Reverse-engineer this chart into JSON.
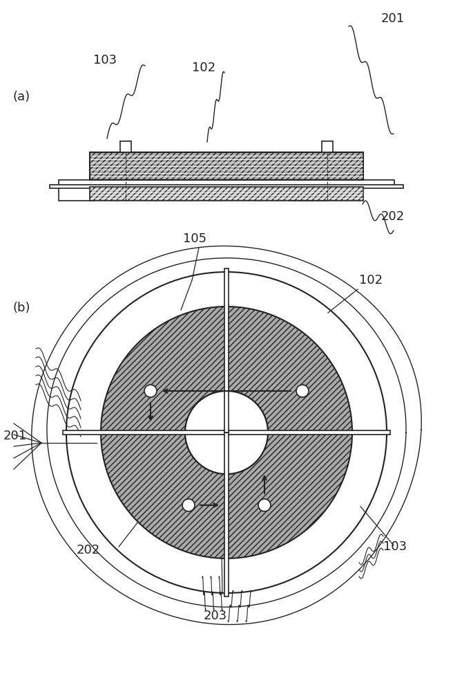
{
  "bg_color": "#ffffff",
  "fig_width": 6.56,
  "fig_height": 10.0,
  "label_a": "(a)",
  "label_b": "(b)",
  "labels": {
    "201_top": "201",
    "103_top": "103",
    "102_top": "102",
    "202_top": "202",
    "105": "105",
    "102_right": "102",
    "201_left": "201",
    "202_bottom_left": "202",
    "103_bottom_right": "103",
    "203": "203"
  },
  "line_color": "#222222",
  "fill_light": "#cccccc",
  "fill_dark": "#888888"
}
